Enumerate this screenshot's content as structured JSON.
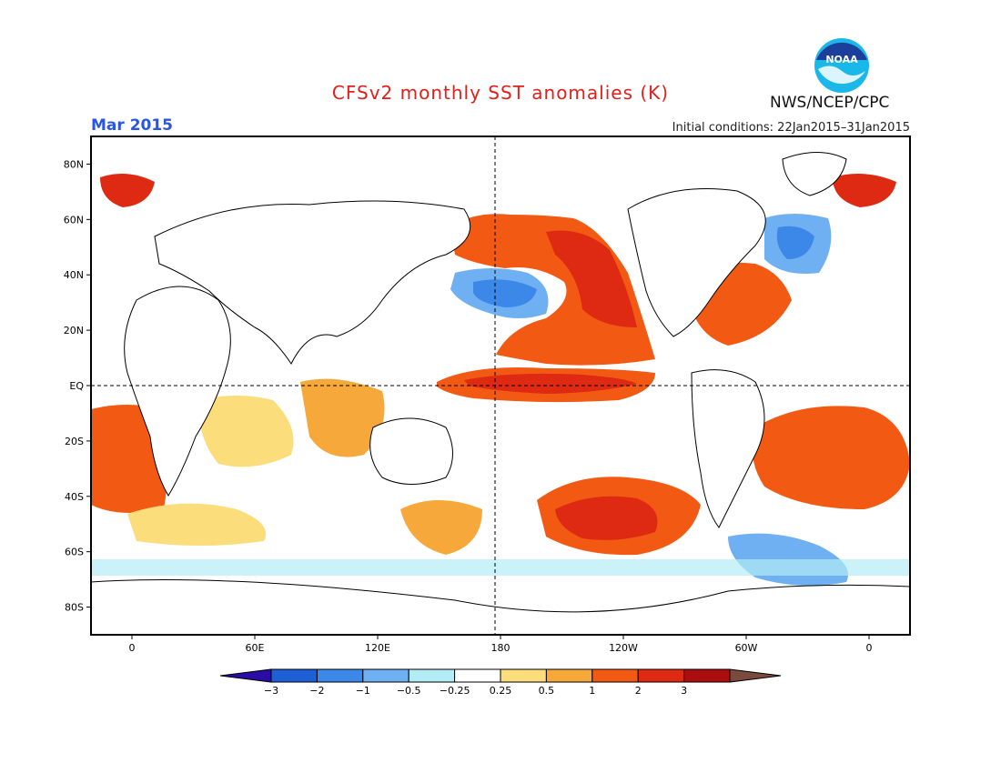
{
  "header": {
    "title": "CFSv2 monthly SST anomalies (K)",
    "month": "Mar 2015",
    "agency": "NWS/NCEP/CPC",
    "initial_conditions": "Initial conditions: 22Jan2015–31Jan2015",
    "logo_text": "NOAA"
  },
  "colors": {
    "title": "#e0201b",
    "month": "#2a55e5",
    "land_outline": "#000000",
    "ocean_neutral": "#ffffff"
  },
  "map": {
    "lat_labels": [
      "80N",
      "60N",
      "40N",
      "20N",
      "EQ",
      "20S",
      "40S",
      "60S",
      "80S"
    ],
    "lat_values": [
      80,
      60,
      40,
      20,
      0,
      -20,
      -40,
      -60,
      -80
    ],
    "lon_labels": [
      "0",
      "60E",
      "120E",
      "180",
      "120W",
      "60W",
      "0"
    ],
    "lon_values": [
      0,
      60,
      120,
      180,
      240,
      300,
      360
    ],
    "lon_range": [
      -20,
      380
    ],
    "lat_range": [
      -90,
      90
    ]
  },
  "colorbar": {
    "labels": [
      "−3",
      "−2",
      "−1",
      "−0.5",
      "−0.25",
      "0.25",
      "0.5",
      "1",
      "2",
      "3"
    ],
    "colors": [
      "#2a0ca7",
      "#1e5fd6",
      "#3b88e8",
      "#6fb0f2",
      "#b3ecf5",
      "#ffffff",
      "#fbdd7c",
      "#f7a83a",
      "#f25a14",
      "#de2a12",
      "#aa0e0e",
      "#7a4a3d"
    ]
  }
}
